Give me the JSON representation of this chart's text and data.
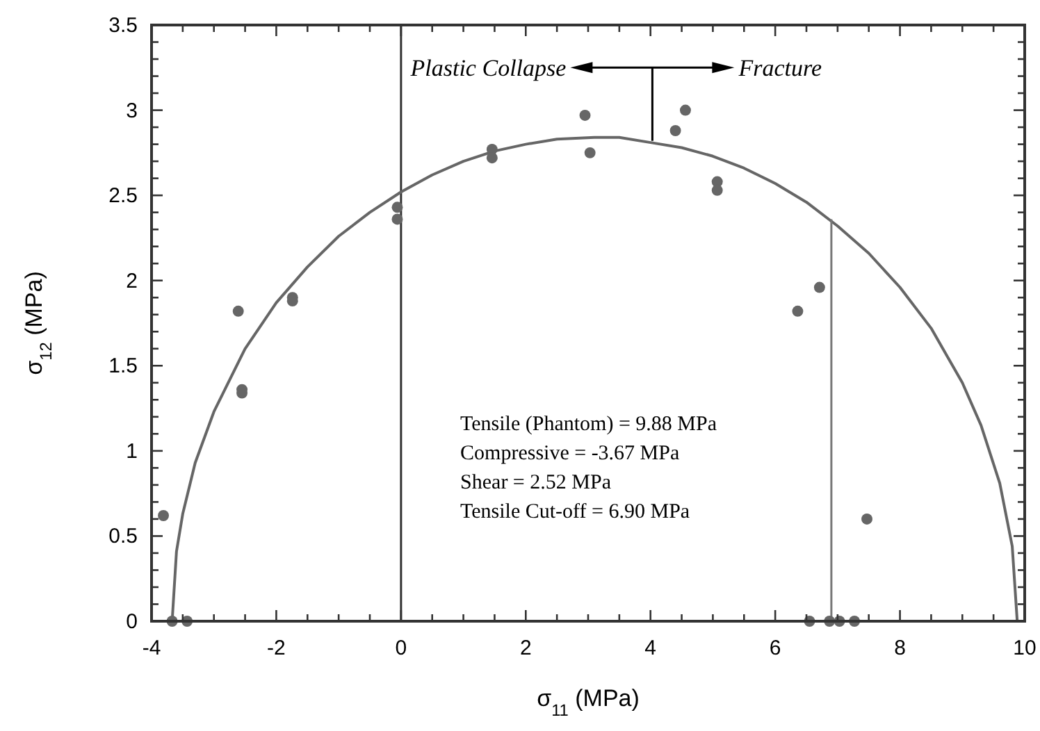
{
  "chart_data": {
    "type": "scatter",
    "xlabel": "σ$_{11}$ (MPa)",
    "ylabel": "σ$_{12}$ (MPa)",
    "xlim": [
      -4,
      10
    ],
    "ylim": [
      0,
      3.5
    ],
    "xticks": [
      -4,
      {
        "value": -3.5,
        "label": null
      },
      {
        "value": -3,
        "label": null
      },
      {
        "value": -2.5,
        "label": null
      },
      -2,
      {
        "value": -1.5,
        "label": null
      },
      {
        "value": -1,
        "label": null
      },
      {
        "value": -0.5,
        "label": null
      },
      0,
      {
        "value": 0.5,
        "label": null
      },
      {
        "value": 1,
        "label": null
      },
      {
        "value": 1.5,
        "label": null
      },
      2,
      {
        "value": 2.5,
        "label": null
      },
      {
        "value": 3,
        "label": null
      },
      {
        "value": 3.5,
        "label": null
      },
      4,
      {
        "value": 4.5,
        "label": null
      },
      {
        "value": 5,
        "label": null
      },
      {
        "value": 5.5,
        "label": null
      },
      6,
      {
        "value": 6.5,
        "label": null
      },
      {
        "value": 7,
        "label": null
      },
      {
        "value": 7.5,
        "label": null
      },
      8,
      {
        "value": 8.5,
        "label": null
      },
      {
        "value": 9,
        "label": null
      },
      {
        "value": 9.5,
        "label": null
      },
      10
    ],
    "yticks": [
      0,
      {
        "value": 0.1,
        "label": null
      },
      {
        "value": 0.2,
        "label": null
      },
      {
        "value": 0.3,
        "label": null
      },
      {
        "value": 0.4,
        "label": null
      },
      0.5,
      {
        "value": 0.6,
        "label": null
      },
      {
        "value": 0.7,
        "label": null
      },
      {
        "value": 0.8,
        "label": null
      },
      {
        "value": 0.9,
        "label": null
      },
      1,
      {
        "value": 1.1,
        "label": null
      },
      {
        "value": 1.2,
        "label": null
      },
      {
        "value": 1.3,
        "label": null
      },
      {
        "value": 1.4,
        "label": null
      },
      1.5,
      {
        "value": 1.6,
        "label": null
      },
      {
        "value": 1.7,
        "label": null
      },
      {
        "value": 1.8,
        "label": null
      },
      {
        "value": 1.9,
        "label": null
      },
      2,
      {
        "value": 2.1,
        "label": null
      },
      {
        "value": 2.2,
        "label": null
      },
      {
        "value": 2.3,
        "label": null
      },
      {
        "value": 2.4,
        "label": null
      },
      2.5,
      {
        "value": 2.6,
        "label": null
      },
      {
        "value": 2.7,
        "label": null
      },
      {
        "value": 2.8,
        "label": null
      },
      {
        "value": 2.9,
        "label": null
      },
      3,
      {
        "value": 3.1,
        "label": null
      },
      {
        "value": 3.2,
        "label": null
      },
      {
        "value": 3.3,
        "label": null
      },
      {
        "value": 3.4,
        "label": null
      },
      3.5
    ],
    "ref_lines": [
      {
        "axis": "x",
        "value": 0,
        "color": "#333333"
      }
    ],
    "annotations": [
      "Plastic Collapse",
      "Fracture",
      "Tensile (Phantom) = 9.88 MPa",
      "Compressive = -3.67 MPa",
      "Shear = 2.52 MPa",
      "Tensile Cut-off = 6.90 MPa"
    ],
    "series": [
      {
        "type": "line",
        "color": "#666666",
        "marker": "none",
        "x": [
          -3.67,
          -3.6,
          -3.5,
          -3.3,
          -3.0,
          -2.5,
          -2.0,
          -1.5,
          -1.0,
          -0.5,
          0,
          0.5,
          1,
          1.5,
          2,
          2.5,
          3.1,
          3.5,
          4,
          4.5,
          5,
          5.5,
          6,
          6.5,
          7,
          7.5,
          8,
          8.5,
          9,
          9.3,
          9.6,
          9.8,
          9.88
        ],
        "values": [
          0,
          0.41,
          0.63,
          0.93,
          1.23,
          1.6,
          1.87,
          2.08,
          2.26,
          2.4,
          2.52,
          2.62,
          2.7,
          2.76,
          2.8,
          2.83,
          2.84,
          2.84,
          2.81,
          2.78,
          2.73,
          2.66,
          2.57,
          2.46,
          2.32,
          2.16,
          1.96,
          1.72,
          1.4,
          1.15,
          0.81,
          0.44,
          0
        ]
      },
      {
        "type": "line",
        "color": "#777777",
        "marker": "none",
        "x": [
          6.9,
          6.9
        ],
        "values": [
          0,
          2.36
        ]
      },
      {
        "color": "#666666",
        "marker": "circle",
        "x": [
          -2.61,
          -1.74,
          -1.74,
          -0.06,
          -0.06,
          1.46,
          1.46,
          2.95,
          3.03,
          4.4,
          4.56,
          5.07,
          5.07,
          6.71,
          6.36,
          -2.55,
          -2.55,
          -3.81,
          -3.67,
          -3.43,
          7.47,
          6.55,
          6.87,
          7.03,
          7.27
        ],
        "values": [
          1.82,
          1.9,
          1.88,
          2.43,
          2.36,
          2.77,
          2.72,
          2.97,
          2.75,
          2.88,
          3.0,
          2.58,
          2.53,
          1.96,
          1.82,
          1.36,
          1.34,
          0.62,
          0,
          0,
          0.6,
          0,
          0,
          0,
          0
        ]
      }
    ]
  }
}
